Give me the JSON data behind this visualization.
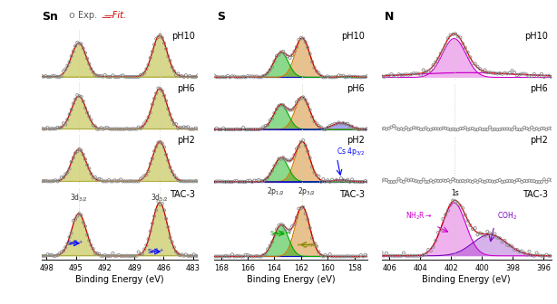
{
  "fig_width": 6.14,
  "fig_height": 3.36,
  "bg_color": "#ffffff",
  "panel_bg": "#ffffff",
  "Sn_xlim": [
    498.5,
    482.5
  ],
  "Sn_xticks": [
    498,
    495,
    492,
    489,
    486,
    483
  ],
  "Sn_p1c": 494.7,
  "Sn_p2c": 486.4,
  "Sn_pw": 0.75,
  "Sn_fill_color": "#b8b830",
  "Sn_fit_color": "#cc0000",
  "Sn_vline_color": "#ccccaa",
  "S_xlim": [
    168.5,
    157.0
  ],
  "S_xticks": [
    168,
    166,
    164,
    162,
    160,
    158
  ],
  "S_p_orange_c": 161.9,
  "S_p_green_c": 163.5,
  "S_pw": 0.55,
  "S_orange": "#cc7700",
  "S_green": "#00aa00",
  "S_blue": "#0000cc",
  "S_fit_color": "#cc0000",
  "S_baseline_color": "#0000bb",
  "N_xlim": [
    406.5,
    395.5
  ],
  "N_xticks": [
    406,
    404,
    402,
    400,
    398,
    396
  ],
  "N_p1c": 401.8,
  "N_p2c": 399.5,
  "N_p1w": 0.75,
  "N_p2w": 1.1,
  "N_magenta": "#cc00cc",
  "N_purple": "#7700bb",
  "N_fit_color": "#cc0000",
  "exp_color": "#888888",
  "xlabel": "Binding Energy (eV)",
  "row_labels": [
    "pH10",
    "pH6",
    "pH2",
    "TAC-3"
  ],
  "label_fontsize": 7.0,
  "tick_fontsize": 6.0,
  "annotation_fontsize": 5.5
}
